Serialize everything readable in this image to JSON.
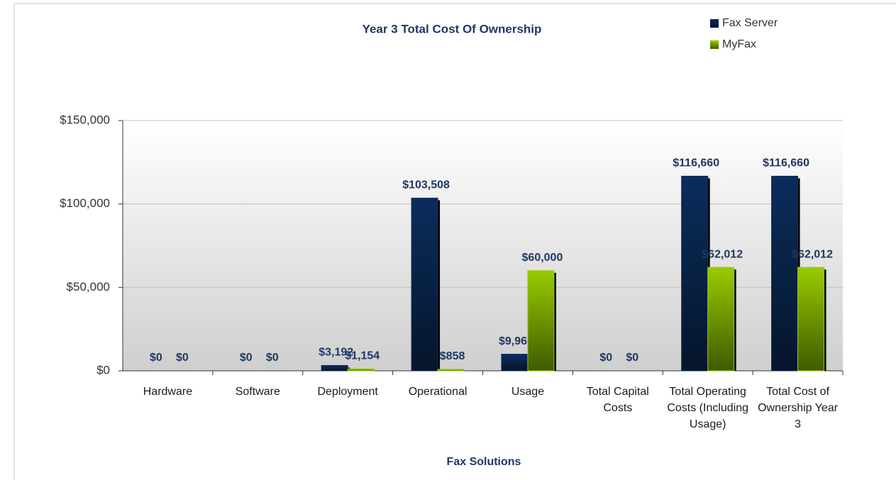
{
  "chart_data": {
    "type": "bar",
    "title": "Year 3 Total Cost Of Ownership",
    "x_label": "Fax Solutions",
    "categories": [
      "Hardware",
      "Software",
      "Deployment",
      "Operational",
      "Usage",
      "Total Capital Costs",
      "Total Operating Costs (Including Usage)",
      "Total Cost of Ownership Year 3"
    ],
    "series": [
      {
        "name": "Fax Server",
        "color": "#0b2d5c",
        "values": [
          0,
          0,
          3192,
          103508,
          9960,
          0,
          116660,
          116660
        ],
        "value_labels": [
          "$0",
          "$0",
          "$3,192",
          "$103,508",
          "$9,960",
          "$0",
          "$116,660",
          "$116,660"
        ]
      },
      {
        "name": "MyFax",
        "color": "#99cc00",
        "values": [
          0,
          0,
          1154,
          858,
          60000,
          0,
          62012,
          62012
        ],
        "value_labels": [
          "$0",
          "$0",
          "$1,154",
          "$858",
          "$60,000",
          "$0",
          "$62,012",
          "$62,012"
        ]
      }
    ],
    "ylim": [
      0,
      150000
    ],
    "yticks": [
      {
        "value": 0,
        "label": "$0"
      },
      {
        "value": 50000,
        "label": "$50,000"
      },
      {
        "value": 100000,
        "label": "$100,000"
      },
      {
        "value": 150000,
        "label": "$150,000"
      }
    ],
    "grid": true,
    "legend": "top-right"
  }
}
